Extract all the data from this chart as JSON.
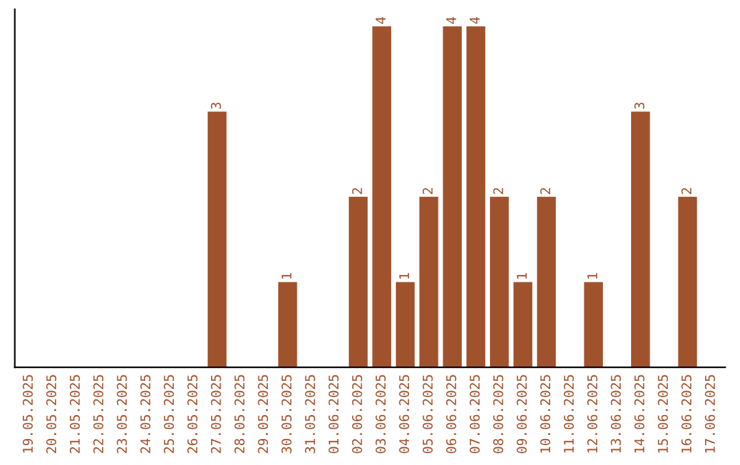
{
  "chart_data": {
    "type": "bar",
    "categories": [
      "19.05.2025",
      "20.05.2025",
      "21.05.2025",
      "22.05.2025",
      "23.05.2025",
      "24.05.2025",
      "25.05.2025",
      "26.05.2025",
      "27.05.2025",
      "28.05.2025",
      "29.05.2025",
      "30.05.2025",
      "31.05.2025",
      "01.06.2025",
      "02.06.2025",
      "03.06.2025",
      "04.06.2025",
      "05.06.2025",
      "06.06.2025",
      "07.06.2025",
      "08.06.2025",
      "09.06.2025",
      "10.06.2025",
      "11.06.2025",
      "12.06.2025",
      "13.06.2025",
      "14.06.2025",
      "15.06.2025",
      "16.06.2025",
      "17.06.2025"
    ],
    "values": [
      0,
      0,
      0,
      0,
      0,
      0,
      0,
      0,
      3,
      0,
      0,
      1,
      0,
      0,
      2,
      4,
      1,
      2,
      4,
      4,
      2,
      1,
      2,
      0,
      1,
      0,
      3,
      0,
      2,
      0
    ],
    "value_labels": [
      null,
      null,
      null,
      null,
      null,
      null,
      null,
      null,
      "3",
      null,
      null,
      "1",
      null,
      null,
      "2",
      "4",
      "1",
      "2",
      "4",
      "4",
      "2",
      "1",
      "2",
      null,
      "1",
      null,
      "3",
      null,
      "2",
      null
    ],
    "color": "#a0522d",
    "tick_labels": "x",
    "grid": false
  }
}
